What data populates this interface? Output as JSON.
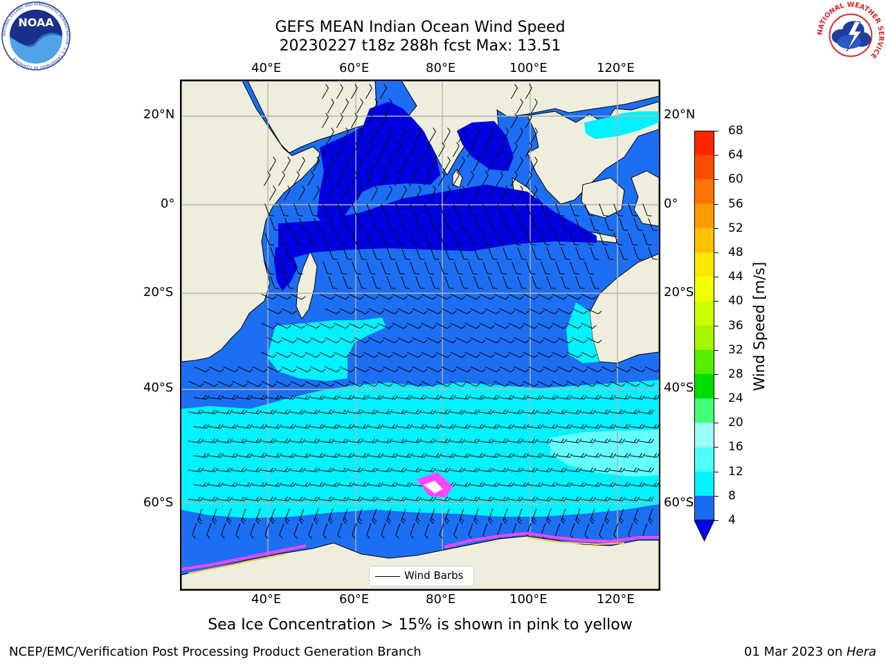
{
  "title_line1": "GEFS MEAN Indian Ocean Wind Speed",
  "title_line2": "20230227 t18z 288h fcst   Max: 13.51",
  "subtitle": "Sea Ice Concentration > 15% is shown in pink to yellow",
  "footer_left": "NCEP/EMC/Verification Post Processing Product Generation Branch",
  "footer_date": "01 Mar 2023 on ",
  "footer_machine": "Hera",
  "legend_label": "Wind Barbs",
  "colorbar_label": "Wind Speed [m/s]",
  "logos": {
    "noaa_text": "NOAA",
    "noaa_ring_text": "NATIONAL OCEANIC AND ATMOSPHERIC ADMINISTRATION · U.S. DEPARTMENT OF COMMERCE ·",
    "nws_ring_text": "NATIONAL WEATHER SERVICE"
  },
  "colors": {
    "land": "#efeedd",
    "ocean_deep": "#0000e0",
    "ocean_mid": "#1c6ef2",
    "ocean_cyan": "#00f2ff",
    "ocean_light": "#64ffff",
    "grid": "#b4b4b4",
    "sea_ice": "#ff44ff"
  },
  "map_ticks": {
    "lon": [
      "40°E",
      "60°E",
      "80°E",
      "100°E",
      "120°E"
    ],
    "lat_left": [
      "20°N",
      "0°",
      "20°S",
      "40°S",
      "60°S"
    ],
    "lat_right": [
      "20°N",
      "0°",
      "20°S",
      "40°S",
      "60°S"
    ]
  },
  "colorbar": {
    "ticks": [
      "68",
      "64",
      "60",
      "56",
      "52",
      "48",
      "44",
      "40",
      "36",
      "32",
      "28",
      "24",
      "20",
      "16",
      "12",
      "8",
      "4"
    ],
    "colors": [
      "#ff0000",
      "#ff2600",
      "#ff4d00",
      "#ff7300",
      "#ff9a00",
      "#ffc000",
      "#ffe600",
      "#f0ff00",
      "#ccff00",
      "#a6f400",
      "#55ee00",
      "#00dd00",
      "#44ff77",
      "#9afff7",
      "#4dfff6",
      "#00f2ff",
      "#1a6df2"
    ],
    "extend_color": "#0000ee"
  },
  "chart_data": {
    "type": "heatmap",
    "title": "GEFS MEAN Indian Ocean Wind Speed",
    "run": "20230227 t18z",
    "forecast_hour": "288h fcst",
    "max_value": 13.51,
    "units": "m/s",
    "colorbar_label": "Wind Speed [m/s]",
    "colorbar_levels": [
      4,
      8,
      12,
      16,
      20,
      24,
      28,
      32,
      36,
      40,
      44,
      48,
      52,
      56,
      60,
      64,
      68
    ],
    "colorbar_extend": "min",
    "lon_ticks": [
      "40°E",
      "60°E",
      "80°E",
      "100°E",
      "120°E"
    ],
    "lat_ticks": [
      "20°N",
      "0°",
      "20°S",
      "40°S",
      "60°S"
    ],
    "legend": [
      "Wind Barbs"
    ],
    "grid": true,
    "legend_position": "bottom-center"
  }
}
